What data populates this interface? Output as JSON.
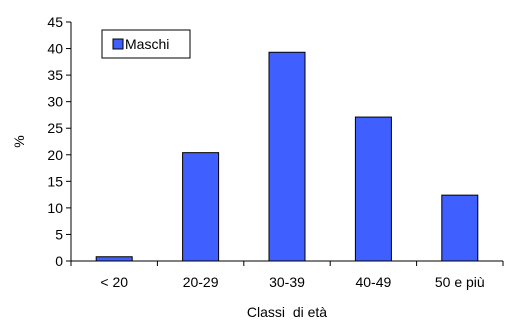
{
  "chart_data": {
    "type": "bar",
    "categories": [
      "< 20",
      "20-29",
      "30-39",
      "40-49",
      "50 e più"
    ],
    "series": [
      {
        "name": "Maschi",
        "values": [
          0.8,
          20.4,
          39.3,
          27.1,
          12.4
        ],
        "color": "#3f5fff"
      }
    ],
    "xlabel": "Classi  di età",
    "ylabel": "%",
    "ylim": [
      0,
      45
    ],
    "yticks": [
      0,
      5,
      10,
      15,
      20,
      25,
      30,
      35,
      40,
      45
    ],
    "grid": false,
    "legend_position": "top-left"
  }
}
